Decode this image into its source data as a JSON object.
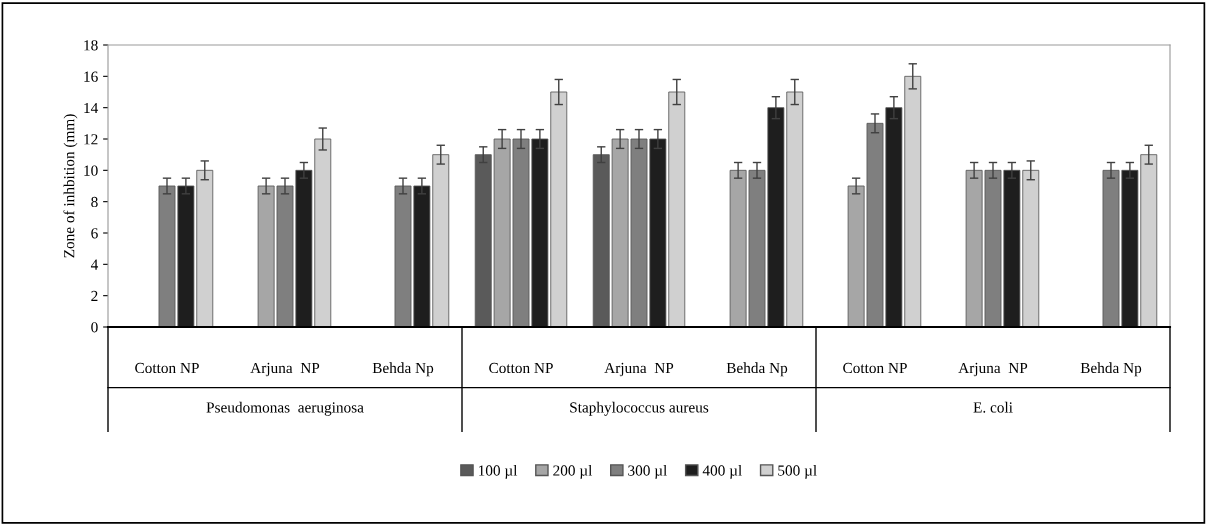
{
  "chart_data": {
    "type": "bar",
    "ylabel": "Zone of inhbition (mm)",
    "categories": [
      "Cotton NP",
      "Arjuna  NP",
      "Behda Np",
      "Cotton NP",
      "Arjuna  NP",
      "Behda Np",
      "Cotton NP",
      "Arjuna  NP",
      "Behda Np"
    ],
    "annotations": [
      "Pseudomonas  aeruginosa",
      "Staphylococcus aureus",
      "E. coli"
    ],
    "series": [
      {
        "name": "100 µl",
        "color": "#5a5a5a",
        "values": [
          null,
          null,
          null,
          11,
          11,
          null,
          null,
          null,
          null
        ],
        "errors": [
          null,
          null,
          null,
          0.5,
          0.5,
          null,
          null,
          null,
          null
        ]
      },
      {
        "name": "200 µl",
        "color": "#a6a6a6",
        "values": [
          null,
          9,
          null,
          12,
          12,
          10,
          9,
          10,
          null
        ],
        "errors": [
          null,
          0.5,
          null,
          0.6,
          0.6,
          0.5,
          0.5,
          0.5,
          null
        ]
      },
      {
        "name": "300 µl",
        "color": "#7f7f7f",
        "values": [
          9,
          9,
          9,
          12,
          12,
          10,
          13,
          10,
          10
        ],
        "errors": [
          0.5,
          0.5,
          0.5,
          0.6,
          0.6,
          0.5,
          0.6,
          0.5,
          0.5
        ]
      },
      {
        "name": "400 µl",
        "color": "#1e1e1e",
        "values": [
          9,
          10,
          9,
          12,
          12,
          14,
          14,
          10,
          10
        ],
        "errors": [
          0.5,
          0.5,
          0.5,
          0.6,
          0.6,
          0.7,
          0.7,
          0.5,
          0.5
        ]
      },
      {
        "name": "500 µl",
        "color": "#d0d0d0",
        "values": [
          10,
          12,
          11,
          15,
          15,
          15,
          16,
          10,
          11
        ],
        "errors": [
          0.6,
          0.7,
          0.6,
          0.8,
          0.8,
          0.8,
          0.8,
          0.6,
          0.6
        ]
      }
    ],
    "ylim": [
      0,
      18
    ],
    "yticks": [
      0,
      2,
      4,
      6,
      8,
      10,
      12,
      14,
      16,
      18
    ],
    "grid": false,
    "legend": "bottom"
  }
}
